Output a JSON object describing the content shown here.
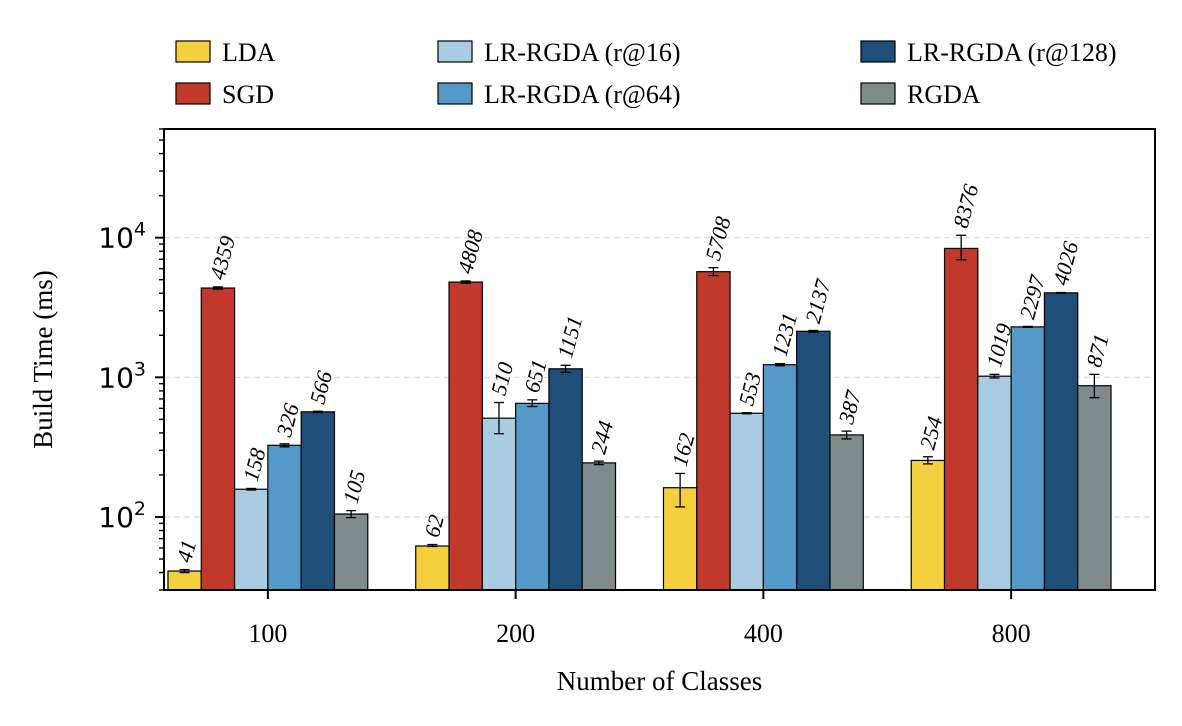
{
  "chart_data": {
    "type": "bar",
    "scale": "log",
    "xlabel": "Number of Classes",
    "ylabel": "Build Time (ms)",
    "categories": [
      "100",
      "200",
      "400",
      "800"
    ],
    "ylim": [
      30,
      60000
    ],
    "yticks": [
      {
        "value": 100,
        "base": "10",
        "exp": "2"
      },
      {
        "value": 1000,
        "base": "10",
        "exp": "3"
      },
      {
        "value": 10000,
        "base": "10",
        "exp": "4"
      }
    ],
    "grid": "horizontal-dashed",
    "legend_position": "top",
    "series": [
      {
        "name": "LDA",
        "color": "#F4D03F",
        "values": [
          41,
          62,
          162,
          254
        ],
        "err_low": [
          40,
          61.5,
          118,
          240
        ],
        "err_high": [
          42,
          63.5,
          205,
          270
        ]
      },
      {
        "name": "SGD",
        "color": "#C0392B",
        "values": [
          4359,
          4808,
          5708,
          8376
        ],
        "err_low": [
          4280,
          4720,
          5350,
          6950
        ],
        "err_high": [
          4440,
          4900,
          6100,
          10400
        ]
      },
      {
        "name": "LR-RGDA (r@16)",
        "color": "#A9CCE3",
        "values": [
          158,
          510,
          553,
          1019
        ],
        "err_low": [
          156,
          395,
          548,
          990
        ],
        "err_high": [
          160,
          660,
          558,
          1050
        ]
      },
      {
        "name": "LR-RGDA (r@64)",
        "color": "#5499C7",
        "values": [
          326,
          651,
          1231,
          2297
        ],
        "err_low": [
          318,
          618,
          1210,
          2280
        ],
        "err_high": [
          334,
          690,
          1252,
          2315
        ]
      },
      {
        "name": "LR-RGDA (r@128)",
        "color": "#1F4E79",
        "values": [
          566,
          1151,
          2137,
          4026
        ],
        "err_low": [
          560,
          1085,
          2110,
          4000
        ],
        "err_high": [
          572,
          1220,
          2165,
          4050
        ]
      },
      {
        "name": "RGDA",
        "color": "#7F8C8D",
        "values": [
          105,
          244,
          387,
          871
        ],
        "err_low": [
          99,
          237,
          362,
          715
        ],
        "err_high": [
          111,
          251,
          412,
          1050
        ]
      }
    ],
    "data_labels": [
      [
        "41",
        "62",
        "162",
        "254"
      ],
      [
        "4359",
        "4808",
        "5708",
        "8376"
      ],
      [
        "158",
        "510",
        "553",
        "1019"
      ],
      [
        "326",
        "651",
        "1231",
        "2297"
      ],
      [
        "566",
        "1151",
        "2137",
        "4026"
      ],
      [
        "105",
        "244",
        "387",
        "871"
      ]
    ]
  }
}
